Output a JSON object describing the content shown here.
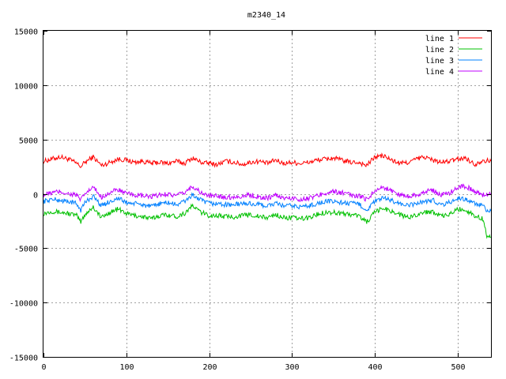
{
  "chart_data": {
    "type": "line",
    "title": "m2340_14",
    "xlabel": "",
    "ylabel": "",
    "xlim": [
      0,
      540
    ],
    "ylim": [
      -15000,
      15000
    ],
    "xticks": [
      0,
      100,
      200,
      300,
      400,
      500
    ],
    "yticks": [
      -15000,
      -10000,
      -5000,
      0,
      5000,
      10000,
      15000
    ],
    "grid": true,
    "legend_position": "top-right",
    "series": [
      {
        "name": "line 1",
        "color": "#ff0000",
        "x": [
          0,
          10,
          20,
          30,
          40,
          45,
          50,
          60,
          70,
          80,
          90,
          100,
          110,
          120,
          130,
          140,
          150,
          160,
          170,
          180,
          190,
          200,
          210,
          220,
          230,
          240,
          250,
          260,
          270,
          280,
          290,
          300,
          310,
          320,
          330,
          340,
          350,
          360,
          370,
          380,
          390,
          400,
          410,
          420,
          430,
          440,
          450,
          460,
          470,
          480,
          490,
          500,
          510,
          520,
          530,
          540
        ],
        "y": [
          3000,
          3200,
          3400,
          3200,
          2800,
          2500,
          2900,
          3400,
          2600,
          2900,
          3200,
          3100,
          2900,
          3000,
          2800,
          2900,
          2800,
          3000,
          2800,
          3300,
          2900,
          2800,
          2700,
          3000,
          2900,
          2700,
          2900,
          3000,
          2800,
          3100,
          2800,
          2900,
          2800,
          2900,
          3100,
          3200,
          3300,
          3100,
          2900,
          2900,
          2600,
          3400,
          3500,
          3100,
          2800,
          2900,
          3200,
          3400,
          3100,
          2900,
          3000,
          3200,
          3300,
          2700,
          3100,
          3000
        ]
      },
      {
        "name": "line 2",
        "color": "#00c000",
        "x": [
          0,
          10,
          20,
          30,
          40,
          45,
          50,
          60,
          70,
          80,
          90,
          100,
          110,
          120,
          130,
          140,
          150,
          160,
          170,
          180,
          190,
          200,
          210,
          220,
          230,
          240,
          250,
          260,
          270,
          280,
          290,
          300,
          310,
          320,
          330,
          340,
          350,
          360,
          370,
          380,
          390,
          400,
          410,
          420,
          430,
          440,
          450,
          460,
          470,
          480,
          490,
          500,
          510,
          520,
          530,
          535,
          540
        ],
        "y": [
          -1800,
          -1600,
          -1700,
          -1800,
          -2000,
          -2600,
          -1900,
          -1200,
          -2200,
          -1700,
          -1400,
          -1800,
          -2000,
          -2100,
          -2300,
          -2000,
          -1900,
          -2100,
          -1800,
          -1100,
          -1700,
          -2000,
          -2000,
          -2100,
          -2100,
          -2000,
          -1900,
          -2100,
          -2200,
          -1900,
          -2200,
          -2200,
          -2300,
          -2200,
          -1900,
          -1700,
          -1700,
          -1800,
          -1900,
          -2000,
          -2600,
          -1700,
          -1300,
          -1600,
          -1900,
          -2200,
          -1900,
          -1700,
          -1600,
          -2100,
          -1900,
          -1400,
          -1500,
          -2000,
          -2300,
          -3800,
          -4000
        ]
      },
      {
        "name": "line 3",
        "color": "#0080ff",
        "x": [
          0,
          10,
          20,
          30,
          40,
          45,
          50,
          60,
          70,
          80,
          90,
          100,
          110,
          120,
          130,
          140,
          150,
          160,
          170,
          180,
          190,
          200,
          210,
          220,
          230,
          240,
          250,
          260,
          270,
          280,
          290,
          300,
          310,
          320,
          330,
          340,
          350,
          360,
          370,
          380,
          390,
          400,
          410,
          420,
          430,
          440,
          450,
          460,
          470,
          480,
          490,
          500,
          510,
          520,
          530,
          535,
          540
        ],
        "y": [
          -700,
          -500,
          -600,
          -700,
          -900,
          -1500,
          -800,
          -200,
          -1100,
          -700,
          -400,
          -800,
          -900,
          -1000,
          -1200,
          -900,
          -800,
          -1000,
          -700,
          -100,
          -600,
          -900,
          -900,
          -1000,
          -1000,
          -900,
          -900,
          -1000,
          -1100,
          -900,
          -1100,
          -1100,
          -1200,
          -1100,
          -900,
          -700,
          -700,
          -800,
          -900,
          -900,
          -1500,
          -700,
          -400,
          -600,
          -900,
          -1100,
          -900,
          -700,
          -600,
          -1000,
          -800,
          -400,
          -500,
          -900,
          -1100,
          -1600,
          -1600
        ]
      },
      {
        "name": "line 4",
        "color": "#c000ff",
        "x": [
          0,
          10,
          20,
          30,
          40,
          45,
          50,
          60,
          70,
          80,
          90,
          100,
          110,
          120,
          130,
          140,
          150,
          160,
          170,
          180,
          190,
          200,
          210,
          220,
          230,
          240,
          250,
          260,
          270,
          280,
          290,
          300,
          310,
          320,
          330,
          340,
          350,
          360,
          370,
          380,
          390,
          400,
          410,
          420,
          430,
          440,
          450,
          460,
          470,
          480,
          490,
          500,
          510,
          520,
          530,
          540
        ],
        "y": [
          -100,
          100,
          200,
          0,
          -100,
          -600,
          0,
          600,
          -300,
          100,
          400,
          0,
          -100,
          -200,
          -300,
          -100,
          0,
          -200,
          100,
          700,
          100,
          -200,
          -200,
          -300,
          -300,
          -200,
          -100,
          -300,
          -400,
          -100,
          -400,
          -400,
          -500,
          -400,
          -200,
          100,
          200,
          100,
          -100,
          -200,
          -500,
          300,
          600,
          300,
          -100,
          -200,
          -100,
          200,
          300,
          -100,
          100,
          600,
          700,
          200,
          -100,
          0
        ]
      }
    ]
  }
}
